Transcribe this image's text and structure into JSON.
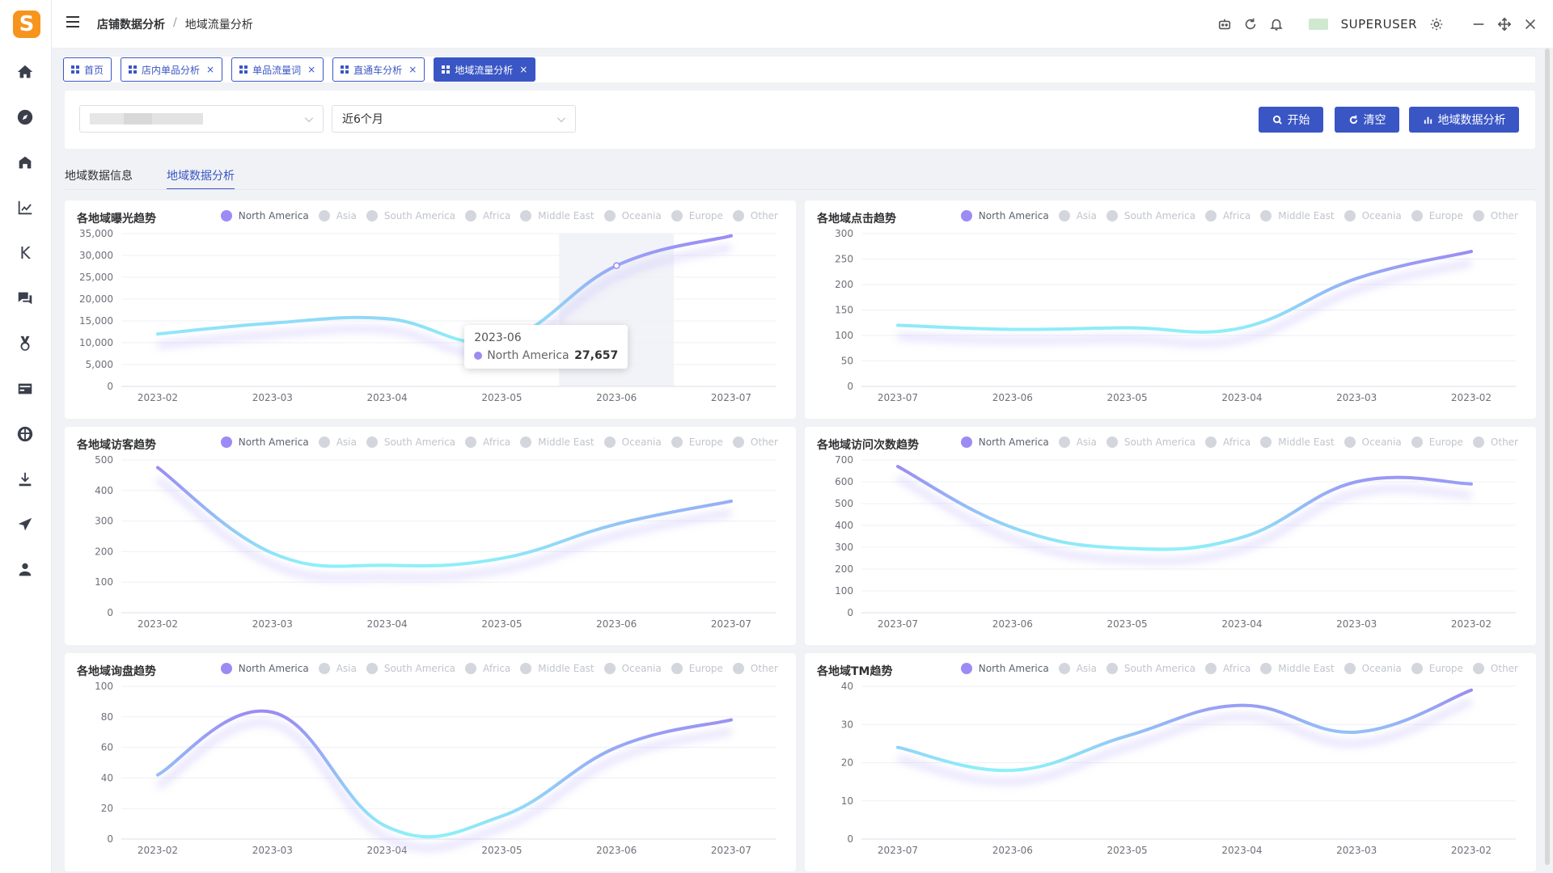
{
  "app": {
    "logo_letter": "S"
  },
  "sidebar": {
    "items": [
      {
        "name": "home-icon"
      },
      {
        "name": "compass-icon"
      },
      {
        "name": "store-icon"
      },
      {
        "name": "line-chart-icon"
      },
      {
        "name": "k-icon",
        "label": "K"
      },
      {
        "name": "chat-icon"
      },
      {
        "name": "medal-icon"
      },
      {
        "name": "card-icon"
      },
      {
        "name": "globe-icon"
      },
      {
        "name": "download-icon"
      },
      {
        "name": "send-icon"
      },
      {
        "name": "user-icon"
      }
    ]
  },
  "header": {
    "breadcrumb": [
      "店铺数据分析",
      "地域流量分析"
    ],
    "breadcrumb_sep": "/",
    "username": "SUPERUSER"
  },
  "tabs": [
    {
      "label": "首页",
      "closable": false,
      "active": false
    },
    {
      "label": "店内单品分析",
      "closable": true,
      "active": false
    },
    {
      "label": "单品流量词",
      "closable": true,
      "active": false
    },
    {
      "label": "直通车分析",
      "closable": true,
      "active": false
    },
    {
      "label": "地域流量分析",
      "closable": true,
      "active": true
    }
  ],
  "tab_close": "×",
  "filters": {
    "period_value": "近6个月",
    "btn_start": "开始",
    "btn_clear": "清空",
    "btn_analysis": "地域数据分析"
  },
  "subtabs": [
    "地域数据信息",
    "地域数据分析"
  ],
  "legend": [
    "North America",
    "Asia",
    "South America",
    "Africa",
    "Middle East",
    "Oceania",
    "Europe",
    "Other"
  ],
  "colors": {
    "accent": "#3a56c5",
    "line_start": "#9b8bf4",
    "line_end": "#8ef0f8",
    "legend_off": "#d3d6dc"
  },
  "tooltip": {
    "date": "2023-06",
    "series": "North America",
    "value": "27,657"
  },
  "chart_data": [
    {
      "type": "line",
      "title": "各地域曝光趋势",
      "x": [
        "2023-02",
        "2023-03",
        "2023-04",
        "2023-05",
        "2023-06",
        "2023-07"
      ],
      "yticks": [
        "35,000",
        "30,000",
        "25,000",
        "20,000",
        "15,000",
        "10,000",
        "5,000",
        "0"
      ],
      "ylim": [
        0,
        35000
      ],
      "series": [
        {
          "name": "North America",
          "values": [
            12000,
            14500,
            15500,
            10500,
            27657,
            34500
          ]
        }
      ],
      "highlight_index": 4
    },
    {
      "type": "line",
      "title": "各地域点击趋势",
      "x": [
        "2023-07",
        "2023-06",
        "2023-05",
        "2023-04",
        "2023-03",
        "2023-02"
      ],
      "yticks": [
        "300",
        "250",
        "200",
        "150",
        "100",
        "50",
        "0"
      ],
      "ylim": [
        0,
        300
      ],
      "series": [
        {
          "name": "North America",
          "values": [
            120,
            112,
            115,
            115,
            212,
            265
          ]
        }
      ]
    },
    {
      "type": "line",
      "title": "各地域访客趋势",
      "x": [
        "2023-02",
        "2023-03",
        "2023-04",
        "2023-05",
        "2023-06",
        "2023-07"
      ],
      "yticks": [
        "500",
        "400",
        "300",
        "200",
        "100",
        "0"
      ],
      "ylim": [
        0,
        500
      ],
      "series": [
        {
          "name": "North America",
          "values": [
            475,
            195,
            155,
            178,
            290,
            365
          ]
        }
      ]
    },
    {
      "type": "line",
      "title": "各地域访问次数趋势",
      "x": [
        "2023-07",
        "2023-06",
        "2023-05",
        "2023-04",
        "2023-03",
        "2023-02"
      ],
      "yticks": [
        "700",
        "600",
        "500",
        "400",
        "300",
        "200",
        "100",
        "0"
      ],
      "ylim": [
        0,
        700
      ],
      "series": [
        {
          "name": "North America",
          "values": [
            670,
            390,
            295,
            345,
            600,
            590
          ]
        }
      ]
    },
    {
      "type": "line",
      "title": "各地域询盘趋势",
      "x": [
        "2023-02",
        "2023-03",
        "2023-04",
        "2023-05",
        "2023-06",
        "2023-07"
      ],
      "yticks": [
        "100",
        "80",
        "60",
        "40",
        "20",
        "0"
      ],
      "ylim": [
        0,
        100
      ],
      "series": [
        {
          "name": "North America",
          "values": [
            42,
            83,
            8,
            15,
            60,
            78
          ]
        }
      ]
    },
    {
      "type": "line",
      "title": "各地域TM趋势",
      "x": [
        "2023-07",
        "2023-06",
        "2023-05",
        "2023-04",
        "2023-03",
        "2023-02"
      ],
      "yticks": [
        "40",
        "30",
        "20",
        "10",
        "0"
      ],
      "ylim": [
        0,
        40
      ],
      "series": [
        {
          "name": "North America",
          "values": [
            24,
            18,
            27,
            35,
            28,
            39
          ]
        }
      ]
    }
  ]
}
